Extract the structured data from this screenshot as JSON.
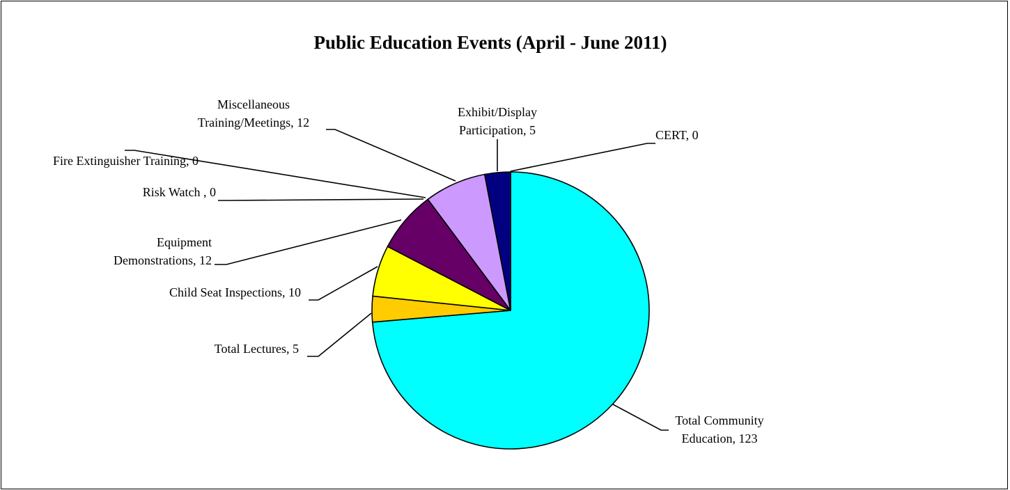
{
  "chart_data": {
    "type": "pie",
    "title": "Public Education Events (April - June 2011)",
    "slices": [
      {
        "name": "Total Community Education",
        "value": 123,
        "color": "#00FFFF",
        "label_lines": [
          "Total Community",
          "Education, 123"
        ]
      },
      {
        "name": "Total Lectures",
        "value": 5,
        "color": "#FFCC00",
        "label_lines": [
          "Total Lectures, 5"
        ]
      },
      {
        "name": "Child Seat Inspections",
        "value": 10,
        "color": "#FFFF00",
        "label_lines": [
          "Child Seat Inspections, 10"
        ]
      },
      {
        "name": "Equipment Demonstrations",
        "value": 12,
        "color": "#660066",
        "label_lines": [
          "Equipment",
          "Demonstrations, 12"
        ]
      },
      {
        "name": "Risk Watch",
        "value": 0,
        "color": "#000000",
        "label_lines": [
          "Risk Watch , 0"
        ]
      },
      {
        "name": "Fire Extinguisher Training",
        "value": 0,
        "color": "#000000",
        "label_lines": [
          "Fire Extinguisher Training, 0"
        ]
      },
      {
        "name": "Miscellaneous Training/Meetings",
        "value": 12,
        "color": "#CC99FF",
        "label_lines": [
          "Miscellaneous",
          "Training/Meetings, 12"
        ]
      },
      {
        "name": "Exhibit/Display Participation",
        "value": 5,
        "color": "#000080",
        "label_lines": [
          "Exhibit/Display",
          "Participation, 5"
        ]
      },
      {
        "name": "CERT",
        "value": 0,
        "color": "#000000",
        "label_lines": [
          "CERT, 0"
        ]
      }
    ],
    "start_angle_deg": 0,
    "direction": "clockwise",
    "legend": "none",
    "data_labels": "category name and value, outside with leader lines"
  }
}
